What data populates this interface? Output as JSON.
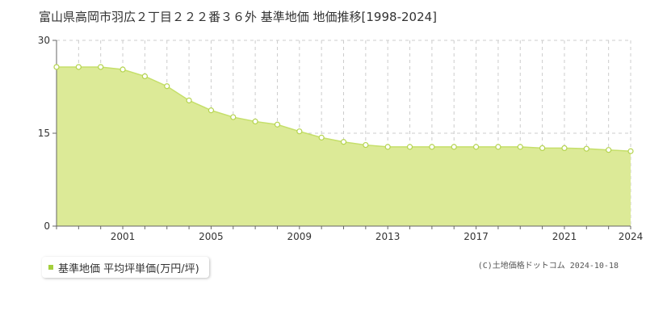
{
  "page": {
    "title": "富山県高岡市羽広２丁目２２２番３６外 基準地価 地価推移[1998-2024]",
    "copyright": "(C)土地価格ドットコム 2024-10-18"
  },
  "colors": {
    "area_fill": "#dcea97",
    "line": "#c5df6a",
    "point_fill": "#ffffff",
    "point_stroke": "#b5d44f",
    "legend_swatch": "#a4cf3c",
    "grid": "#cccccc",
    "axis": "#666666"
  },
  "chart_data": {
    "type": "area",
    "title": "富山県高岡市羽広２丁目２２２番３６外 基準地価 地価推移[1998-2024]",
    "x": [
      1998,
      1999,
      2000,
      2001,
      2002,
      2003,
      2004,
      2005,
      2006,
      2007,
      2008,
      2009,
      2010,
      2011,
      2012,
      2013,
      2014,
      2015,
      2016,
      2017,
      2018,
      2019,
      2020,
      2021,
      2022,
      2023,
      2024
    ],
    "series": [
      {
        "name": "基準地価 平均坪単価(万円/坪)",
        "values": [
          25.7,
          25.7,
          25.7,
          25.3,
          24.2,
          22.6,
          20.3,
          18.7,
          17.6,
          16.9,
          16.4,
          15.3,
          14.3,
          13.6,
          13.1,
          12.8,
          12.8,
          12.8,
          12.8,
          12.8,
          12.8,
          12.8,
          12.6,
          12.6,
          12.5,
          12.3,
          12.1
        ]
      }
    ],
    "x_tick_labels": [
      "2001",
      "2005",
      "2009",
      "2013",
      "2017",
      "2021",
      "2024"
    ],
    "x_tick_values": [
      2001,
      2005,
      2009,
      2013,
      2017,
      2021,
      2024
    ],
    "y_tick_labels": [
      "0",
      "15",
      "30"
    ],
    "y_tick_values": [
      0,
      15,
      30
    ],
    "xlim": [
      1998,
      2024
    ],
    "ylim": [
      0,
      30
    ],
    "grid": true,
    "legend": "bottom-left"
  }
}
